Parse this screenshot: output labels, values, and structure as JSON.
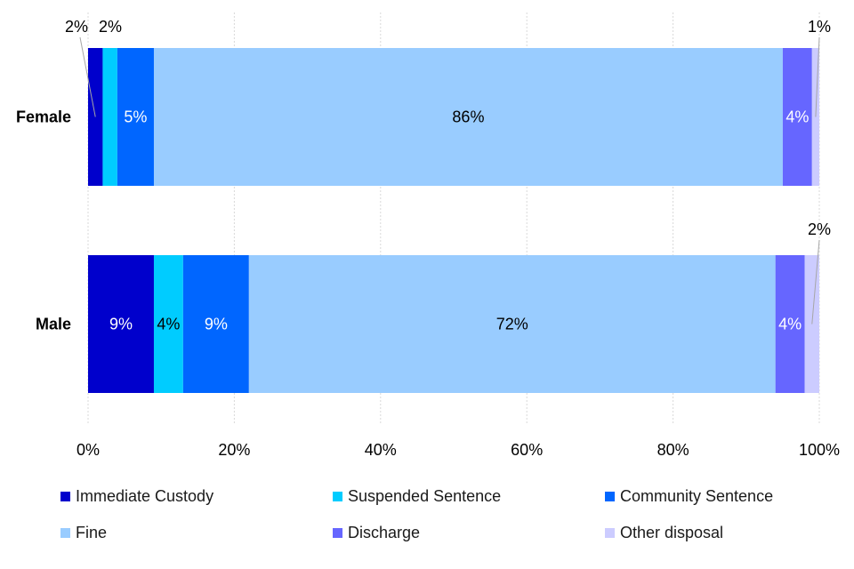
{
  "chart_data": {
    "type": "bar",
    "orientation": "horizontal",
    "stacked": true,
    "categories": [
      "Female",
      "Male"
    ],
    "xlim": [
      0,
      100
    ],
    "xticks": [
      "0%",
      "20%",
      "40%",
      "60%",
      "80%",
      "100%"
    ],
    "grid": "vertical dashed",
    "legend_position": "bottom",
    "series": [
      {
        "name": "Immediate Custody",
        "color": "#0000CC",
        "values": [
          2,
          9
        ],
        "labels": [
          "2%",
          "9%"
        ],
        "label_color": "#ffffff"
      },
      {
        "name": "Suspended Sentence",
        "color": "#00CCFF",
        "values": [
          2,
          4
        ],
        "labels": [
          "2%",
          "4%"
        ],
        "label_color": "#000000"
      },
      {
        "name": "Community Sentence",
        "color": "#0066FF",
        "values": [
          5,
          9
        ],
        "labels": [
          "5%",
          "9%"
        ],
        "label_color": "#ffffff"
      },
      {
        "name": "Fine",
        "color": "#99CCFF",
        "values": [
          86,
          72
        ],
        "labels": [
          "86%",
          "72%"
        ],
        "label_color": "#000000"
      },
      {
        "name": "Discharge",
        "color": "#6666FF",
        "values": [
          4,
          4
        ],
        "labels": [
          "4%",
          "4%"
        ],
        "label_color": "#ffffff"
      },
      {
        "name": "Other disposal",
        "color": "#CCCCFF",
        "values": [
          1,
          2
        ],
        "labels": [
          "1%",
          "2%"
        ],
        "label_color": "#000000"
      }
    ]
  }
}
